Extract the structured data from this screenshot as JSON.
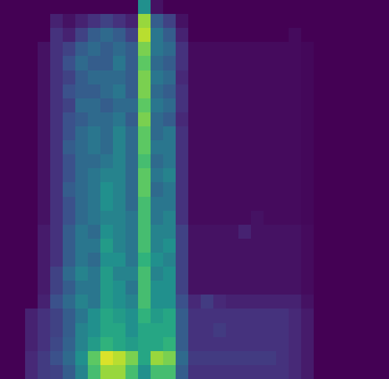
{
  "chart_data": {
    "type": "heatmap",
    "tick_labels": false,
    "zlim": [
      0,
      1
    ],
    "cells": [
      [
        0,
        0,
        0,
        0,
        0,
        0,
        0,
        0,
        0,
        0,
        0,
        0.5,
        0.05,
        0,
        0,
        0,
        0,
        0,
        0,
        0,
        0,
        0,
        0,
        0,
        0,
        0,
        0,
        0,
        0,
        0,
        0
      ],
      [
        0,
        0,
        0,
        0,
        0.1,
        0.05,
        0.1,
        0.15,
        0.2,
        0.15,
        0.1,
        0.85,
        0.3,
        0.2,
        0.05,
        0,
        0,
        0,
        0,
        0,
        0,
        0,
        0,
        0,
        0,
        0,
        0,
        0,
        0,
        0,
        0
      ],
      [
        0,
        0,
        0,
        0,
        0.15,
        0.1,
        0.2,
        0.3,
        0.35,
        0.3,
        0.2,
        0.9,
        0.4,
        0.3,
        0.1,
        0,
        0,
        0,
        0,
        0,
        0,
        0,
        0,
        0.03,
        0,
        0,
        0,
        0,
        0,
        0,
        0
      ],
      [
        0,
        0,
        0,
        0.05,
        0.15,
        0.2,
        0.3,
        0.35,
        0.3,
        0.35,
        0.3,
        0.8,
        0.4,
        0.35,
        0.15,
        0.03,
        0.03,
        0.03,
        0.03,
        0.03,
        0.03,
        0.03,
        0.03,
        0.03,
        0.02,
        0,
        0,
        0,
        0,
        0,
        0
      ],
      [
        0,
        0,
        0,
        0.05,
        0.15,
        0.25,
        0.35,
        0.3,
        0.3,
        0.4,
        0.3,
        0.75,
        0.35,
        0.3,
        0.15,
        0.03,
        0.03,
        0.03,
        0.03,
        0.03,
        0.03,
        0.03,
        0.03,
        0.03,
        0.02,
        0,
        0,
        0,
        0,
        0,
        0
      ],
      [
        0,
        0,
        0,
        0.05,
        0.15,
        0.2,
        0.3,
        0.35,
        0.35,
        0.35,
        0.3,
        0.8,
        0.4,
        0.35,
        0.12,
        0.03,
        0.03,
        0.03,
        0.03,
        0.03,
        0.03,
        0.03,
        0.03,
        0.03,
        0.02,
        0,
        0,
        0,
        0,
        0,
        0
      ],
      [
        0,
        0,
        0,
        0.05,
        0.15,
        0.25,
        0.3,
        0.3,
        0.35,
        0.4,
        0.3,
        0.8,
        0.35,
        0.3,
        0.15,
        0.03,
        0.03,
        0.03,
        0.03,
        0.03,
        0.03,
        0.03,
        0.03,
        0.03,
        0.02,
        0,
        0,
        0,
        0,
        0,
        0
      ],
      [
        0,
        0,
        0,
        0.05,
        0.15,
        0.2,
        0.35,
        0.35,
        0.3,
        0.35,
        0.35,
        0.75,
        0.4,
        0.35,
        0.15,
        0.03,
        0.03,
        0.03,
        0.03,
        0.03,
        0.03,
        0.03,
        0.03,
        0.03,
        0.02,
        0,
        0,
        0,
        0,
        0,
        0
      ],
      [
        0,
        0,
        0,
        0.05,
        0.15,
        0.25,
        0.3,
        0.35,
        0.35,
        0.4,
        0.3,
        0.8,
        0.35,
        0.3,
        0.12,
        0.03,
        0.03,
        0.03,
        0.03,
        0.03,
        0.03,
        0.03,
        0.03,
        0.03,
        0.02,
        0,
        0,
        0,
        0,
        0,
        0
      ],
      [
        0,
        0,
        0,
        0.05,
        0.15,
        0.25,
        0.35,
        0.4,
        0.35,
        0.45,
        0.35,
        0.75,
        0.35,
        0.4,
        0.15,
        0.03,
        0.03,
        0.03,
        0.03,
        0.03,
        0.03,
        0.03,
        0.03,
        0.03,
        0.02,
        0,
        0,
        0,
        0,
        0,
        0
      ],
      [
        0,
        0,
        0,
        0.05,
        0.15,
        0.3,
        0.35,
        0.4,
        0.35,
        0.45,
        0.35,
        0.75,
        0.4,
        0.4,
        0.15,
        0.03,
        0.03,
        0.03,
        0.03,
        0.03,
        0.03,
        0.03,
        0.03,
        0.03,
        0.02,
        0,
        0,
        0,
        0,
        0,
        0
      ],
      [
        0,
        0,
        0,
        0.05,
        0.15,
        0.25,
        0.35,
        0.35,
        0.4,
        0.45,
        0.35,
        0.7,
        0.35,
        0.4,
        0.15,
        0.03,
        0.03,
        0.03,
        0.03,
        0.03,
        0.03,
        0.03,
        0.03,
        0.03,
        0.02,
        0,
        0,
        0,
        0,
        0,
        0
      ],
      [
        0,
        0,
        0,
        0.05,
        0.15,
        0.25,
        0.35,
        0.4,
        0.45,
        0.45,
        0.35,
        0.75,
        0.4,
        0.45,
        0.15,
        0.03,
        0.03,
        0.03,
        0.03,
        0.03,
        0.03,
        0.03,
        0.03,
        0.03,
        0.02,
        0,
        0,
        0,
        0,
        0,
        0
      ],
      [
        0,
        0,
        0,
        0.05,
        0.15,
        0.3,
        0.35,
        0.4,
        0.5,
        0.45,
        0.35,
        0.75,
        0.35,
        0.4,
        0.15,
        0.03,
        0.03,
        0.03,
        0.03,
        0.03,
        0.03,
        0.03,
        0.03,
        0.03,
        0.02,
        0,
        0,
        0,
        0,
        0,
        0
      ],
      [
        0,
        0,
        0,
        0.05,
        0.15,
        0.25,
        0.35,
        0.4,
        0.5,
        0.45,
        0.35,
        0.7,
        0.4,
        0.4,
        0.15,
        0.03,
        0.03,
        0.03,
        0.03,
        0.03,
        0.03,
        0.03,
        0.03,
        0.03,
        0.02,
        0,
        0,
        0,
        0,
        0,
        0
      ],
      [
        0,
        0,
        0,
        0.05,
        0.15,
        0.25,
        0.35,
        0.4,
        0.45,
        0.45,
        0.4,
        0.7,
        0.4,
        0.45,
        0.15,
        0.03,
        0.03,
        0.03,
        0.03,
        0.03,
        0.05,
        0.03,
        0.03,
        0.03,
        0.02,
        0,
        0,
        0,
        0,
        0,
        0
      ],
      [
        0,
        0,
        0,
        0.08,
        0.15,
        0.3,
        0.4,
        0.35,
        0.5,
        0.45,
        0.4,
        0.7,
        0.45,
        0.45,
        0.2,
        0.05,
        0.05,
        0.05,
        0.05,
        0.1,
        0.05,
        0.05,
        0.05,
        0.05,
        0.03,
        0,
        0,
        0,
        0,
        0,
        0
      ],
      [
        0,
        0,
        0,
        0.08,
        0.15,
        0.3,
        0.4,
        0.4,
        0.55,
        0.45,
        0.4,
        0.7,
        0.45,
        0.5,
        0.2,
        0.05,
        0.05,
        0.05,
        0.05,
        0.05,
        0.05,
        0.05,
        0.05,
        0.05,
        0.03,
        0,
        0,
        0,
        0,
        0,
        0
      ],
      [
        0,
        0,
        0,
        0.08,
        0.15,
        0.3,
        0.4,
        0.35,
        0.5,
        0.5,
        0.4,
        0.65,
        0.5,
        0.45,
        0.2,
        0.05,
        0.05,
        0.05,
        0.05,
        0.05,
        0.05,
        0.05,
        0.05,
        0.05,
        0.03,
        0,
        0,
        0,
        0,
        0,
        0
      ],
      [
        0,
        0,
        0,
        0.08,
        0.2,
        0.35,
        0.45,
        0.4,
        0.55,
        0.45,
        0.45,
        0.7,
        0.45,
        0.5,
        0.2,
        0.05,
        0.05,
        0.05,
        0.05,
        0.05,
        0.05,
        0.05,
        0.05,
        0.05,
        0.03,
        0,
        0,
        0,
        0,
        0,
        0
      ],
      [
        0,
        0,
        0,
        0.08,
        0.2,
        0.3,
        0.4,
        0.4,
        0.55,
        0.5,
        0.4,
        0.7,
        0.5,
        0.5,
        0.2,
        0.05,
        0.05,
        0.05,
        0.05,
        0.05,
        0.05,
        0.05,
        0.05,
        0.05,
        0.03,
        0,
        0,
        0,
        0,
        0,
        0
      ],
      [
        0,
        0,
        0,
        0.1,
        0.25,
        0.35,
        0.45,
        0.4,
        0.55,
        0.5,
        0.45,
        0.7,
        0.5,
        0.5,
        0.25,
        0.12,
        0.18,
        0.12,
        0.1,
        0.1,
        0.1,
        0.1,
        0.1,
        0.1,
        0.05,
        0,
        0,
        0,
        0,
        0,
        0
      ],
      [
        0,
        0,
        0.1,
        0.15,
        0.2,
        0.3,
        0.4,
        0.5,
        0.6,
        0.55,
        0.5,
        0.65,
        0.55,
        0.6,
        0.3,
        0.15,
        0.15,
        0.15,
        0.15,
        0.15,
        0.15,
        0.15,
        0.15,
        0.12,
        0.08,
        0,
        0,
        0,
        0,
        0,
        0
      ],
      [
        0,
        0,
        0.1,
        0.15,
        0.2,
        0.3,
        0.45,
        0.5,
        0.6,
        0.6,
        0.5,
        0.6,
        0.6,
        0.6,
        0.3,
        0.15,
        0.15,
        0.18,
        0.15,
        0.15,
        0.15,
        0.15,
        0.15,
        0.12,
        0.08,
        0,
        0,
        0,
        0,
        0,
        0
      ],
      [
        0,
        0,
        0.1,
        0.15,
        0.22,
        0.32,
        0.45,
        0.55,
        0.65,
        0.6,
        0.55,
        0.6,
        0.6,
        0.65,
        0.3,
        0.15,
        0.15,
        0.15,
        0.15,
        0.15,
        0.15,
        0.15,
        0.15,
        0.12,
        0.08,
        0,
        0,
        0,
        0,
        0,
        0
      ],
      [
        0,
        0,
        0.12,
        0.18,
        0.25,
        0.35,
        0.5,
        0.75,
        0.95,
        0.9,
        0.8,
        0.6,
        0.85,
        0.8,
        0.35,
        0.18,
        0.18,
        0.18,
        0.18,
        0.18,
        0.18,
        0.18,
        0.15,
        0.12,
        0.08,
        0,
        0,
        0,
        0,
        0,
        0
      ],
      [
        0,
        0,
        0.12,
        0.18,
        0.2,
        0.3,
        0.45,
        0.7,
        0.85,
        0.85,
        0.7,
        0.5,
        0.7,
        0.7,
        0.3,
        0.15,
        0.15,
        0.15,
        0.15,
        0.15,
        0.15,
        0.15,
        0.15,
        0.12,
        0.08,
        0,
        0,
        0,
        0,
        0,
        0
      ]
    ]
  }
}
